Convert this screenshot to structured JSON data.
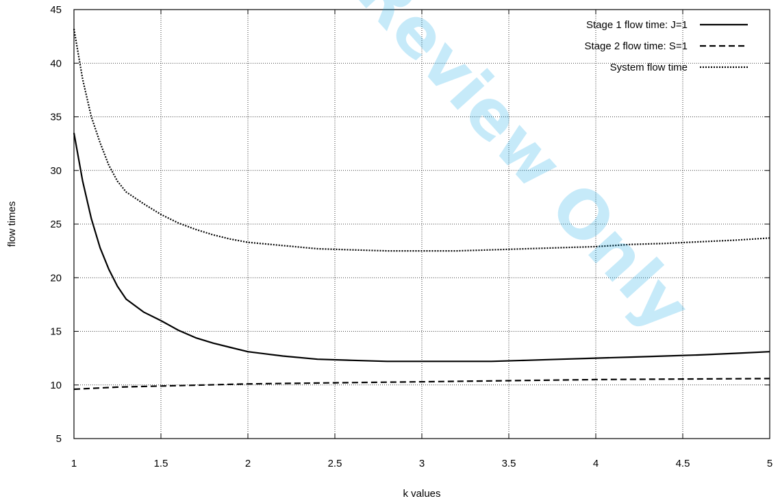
{
  "watermark": "Review Only",
  "chart_data": {
    "type": "line",
    "title": "",
    "xlabel": "k values",
    "ylabel": "flow times",
    "xlim": [
      1,
      5
    ],
    "ylim": [
      5,
      45
    ],
    "xticks": [
      1,
      1.5,
      2,
      2.5,
      3,
      3.5,
      4,
      4.5,
      5
    ],
    "yticks": [
      5,
      10,
      15,
      20,
      25,
      30,
      35,
      40,
      45
    ],
    "grid": true,
    "legend_position": "top-right",
    "series": [
      {
        "name": "Stage 1 flow time: J=1",
        "style": "solid",
        "color": "#000000",
        "x": [
          1.0,
          1.05,
          1.1,
          1.15,
          1.2,
          1.25,
          1.3,
          1.4,
          1.5,
          1.6,
          1.7,
          1.8,
          1.9,
          2.0,
          2.2,
          2.4,
          2.6,
          2.8,
          3.0,
          3.2,
          3.4,
          3.6,
          3.8,
          4.0,
          4.2,
          4.4,
          4.6,
          4.8,
          5.0
        ],
        "y": [
          33.5,
          29.0,
          25.5,
          22.8,
          20.8,
          19.2,
          18.0,
          16.8,
          16.0,
          15.1,
          14.4,
          13.9,
          13.5,
          13.1,
          12.7,
          12.4,
          12.3,
          12.2,
          12.2,
          12.2,
          12.2,
          12.3,
          12.4,
          12.5,
          12.6,
          12.7,
          12.8,
          12.95,
          13.1
        ]
      },
      {
        "name": "Stage 2 flow time: S=1",
        "style": "dashed",
        "color": "#000000",
        "x": [
          1.0,
          1.25,
          1.5,
          1.75,
          2.0,
          2.5,
          3.0,
          3.5,
          4.0,
          4.5,
          5.0
        ],
        "y": [
          9.6,
          9.8,
          9.9,
          10.0,
          10.1,
          10.2,
          10.3,
          10.4,
          10.5,
          10.55,
          10.6
        ]
      },
      {
        "name": "System flow time",
        "style": "dotted",
        "color": "#000000",
        "x": [
          1.0,
          1.05,
          1.1,
          1.15,
          1.2,
          1.25,
          1.3,
          1.4,
          1.5,
          1.6,
          1.7,
          1.8,
          1.9,
          2.0,
          2.2,
          2.4,
          2.6,
          2.8,
          3.0,
          3.2,
          3.4,
          3.6,
          3.8,
          4.0,
          4.2,
          4.4,
          4.6,
          4.8,
          5.0
        ],
        "y": [
          43.2,
          38.5,
          35.0,
          32.6,
          30.5,
          29.0,
          28.0,
          26.9,
          25.9,
          25.1,
          24.5,
          24.0,
          23.6,
          23.3,
          23.0,
          22.7,
          22.6,
          22.5,
          22.5,
          22.5,
          22.6,
          22.7,
          22.8,
          22.9,
          23.1,
          23.2,
          23.35,
          23.5,
          23.7
        ]
      }
    ]
  }
}
